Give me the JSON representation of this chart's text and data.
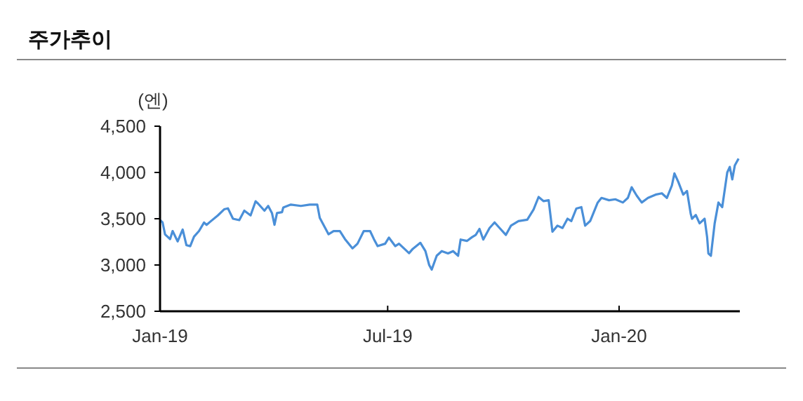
{
  "chart_data": {
    "type": "line",
    "title": "주가추이",
    "ylabel": "(엔)",
    "xlim": [
      "2019-01-01",
      "2020-04-06"
    ],
    "xticks": [
      {
        "value": "2019-01-01",
        "label": "Jan-19"
      },
      {
        "value": "2019-07-01",
        "label": "Jul-19"
      },
      {
        "value": "2020-01-01",
        "label": "Jan-20"
      }
    ],
    "ylim": [
      2500,
      4500
    ],
    "yticks": [
      {
        "value": 2500,
        "label": "2,500"
      },
      {
        "value": 3000,
        "label": "3,000"
      },
      {
        "value": 3500,
        "label": "3,500"
      },
      {
        "value": 4000,
        "label": "4,000"
      },
      {
        "value": 4500,
        "label": "4,500"
      }
    ],
    "grid": false,
    "series": [
      {
        "color": "#4a8fd8",
        "x": [
          "2019-01-01",
          "2019-01-03",
          "2019-01-05",
          "2019-01-09",
          "2019-01-11",
          "2019-01-15",
          "2019-01-19",
          "2019-01-22",
          "2019-01-25",
          "2019-01-28",
          "2019-02-01",
          "2019-02-05",
          "2019-02-07",
          "2019-02-10",
          "2019-02-16",
          "2019-02-21",
          "2019-02-24",
          "2019-02-28",
          "2019-03-05",
          "2019-03-09",
          "2019-03-14",
          "2019-03-18",
          "2019-03-20",
          "2019-03-25",
          "2019-03-28",
          "2019-03-31",
          "2019-04-02",
          "2019-04-04",
          "2019-04-08",
          "2019-04-09",
          "2019-04-15",
          "2019-04-23",
          "2019-04-30",
          "2019-05-06",
          "2019-05-08",
          "2019-05-13",
          "2019-05-15",
          "2019-05-19",
          "2019-05-24",
          "2019-05-28",
          "2019-06-03",
          "2019-06-07",
          "2019-06-12",
          "2019-06-17",
          "2019-06-20",
          "2019-06-23",
          "2019-06-29",
          "2019-07-02",
          "2019-07-07",
          "2019-07-10",
          "2019-07-18",
          "2019-07-21",
          "2019-07-27",
          "2019-07-31",
          "2019-08-03",
          "2019-08-05",
          "2019-08-09",
          "2019-08-13",
          "2019-08-18",
          "2019-08-22",
          "2019-08-26",
          "2019-08-28",
          "2019-09-02",
          "2019-09-06",
          "2019-09-09",
          "2019-09-12",
          "2019-09-15",
          "2019-09-20",
          "2019-09-24",
          "2019-09-28",
          "2019-10-03",
          "2019-10-07",
          "2019-10-13",
          "2019-10-20",
          "2019-10-25",
          "2019-10-29",
          "2019-11-02",
          "2019-11-06",
          "2019-11-09",
          "2019-11-13",
          "2019-11-17",
          "2019-11-21",
          "2019-11-24",
          "2019-11-28",
          "2019-12-02",
          "2019-12-05",
          "2019-12-09",
          "2019-12-15",
          "2019-12-18",
          "2019-12-24",
          "2019-12-29",
          "2020-01-04",
          "2020-01-08",
          "2020-01-11",
          "2020-01-15",
          "2020-01-19",
          "2020-01-24",
          "2020-01-30",
          "2020-02-04",
          "2020-02-08",
          "2020-02-12",
          "2020-02-14",
          "2020-02-17",
          "2020-02-21",
          "2020-02-24",
          "2020-02-27",
          "2020-02-28",
          "2020-03-02",
          "2020-03-05",
          "2020-03-09",
          "2020-03-11",
          "2020-03-12",
          "2020-03-14",
          "2020-03-17",
          "2020-03-20",
          "2020-03-23",
          "2020-03-27",
          "2020-03-29",
          "2020-03-31",
          "2020-04-02",
          "2020-04-05"
        ],
        "values": [
          3485,
          3460,
          3330,
          3280,
          3367,
          3255,
          3383,
          3214,
          3204,
          3306,
          3367,
          3459,
          3434,
          3469,
          3536,
          3602,
          3612,
          3500,
          3485,
          3587,
          3536,
          3689,
          3663,
          3587,
          3638,
          3561,
          3434,
          3561,
          3571,
          3622,
          3653,
          3638,
          3653,
          3653,
          3510,
          3383,
          3332,
          3367,
          3367,
          3281,
          3179,
          3230,
          3367,
          3367,
          3281,
          3204,
          3230,
          3296,
          3204,
          3230,
          3128,
          3175,
          3240,
          3150,
          3000,
          2950,
          3100,
          3150,
          3125,
          3150,
          3100,
          3275,
          3260,
          3300,
          3325,
          3390,
          3275,
          3400,
          3460,
          3400,
          3325,
          3425,
          3475,
          3490,
          3600,
          3735,
          3690,
          3700,
          3360,
          3425,
          3400,
          3500,
          3475,
          3610,
          3625,
          3425,
          3475,
          3675,
          3725,
          3700,
          3710,
          3675,
          3725,
          3840,
          3750,
          3675,
          3725,
          3760,
          3775,
          3725,
          3860,
          3990,
          3900,
          3760,
          3800,
          3550,
          3500,
          3540,
          3450,
          3500,
          3300,
          3125,
          3100,
          3450,
          3675,
          3625,
          4000,
          4060,
          3925,
          4075,
          4150
        ]
      }
    ]
  }
}
